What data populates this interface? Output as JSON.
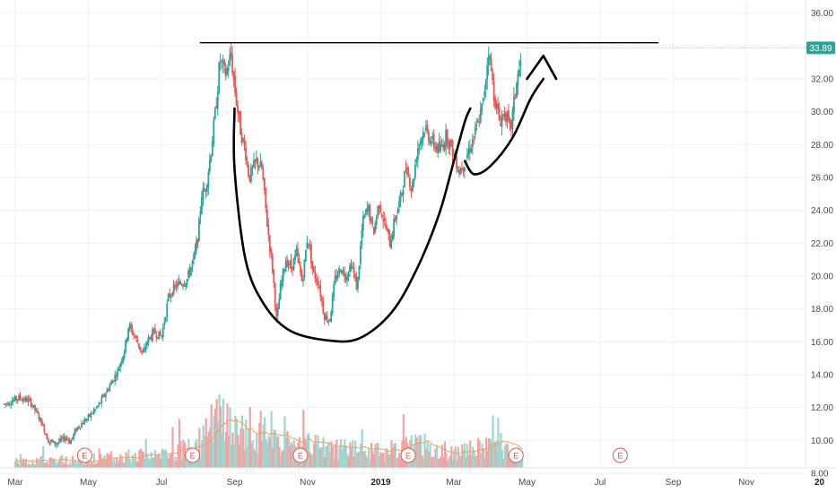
{
  "chart_data": {
    "type": "candlestick",
    "title": "",
    "y_axis": {
      "position": "right",
      "range": [
        6.8,
        36.8
      ],
      "tick_labels": [
        "36.00",
        "34.00",
        "32.00",
        "30.00",
        "28.00",
        "26.00",
        "24.00",
        "22.00",
        "20.00",
        "18.00",
        "16.00",
        "14.00",
        "12.00",
        "10.00",
        "8.00"
      ],
      "tick_values": [
        36,
        34,
        32,
        30,
        28,
        26,
        24,
        22,
        20,
        18,
        16,
        14,
        12,
        10,
        8
      ]
    },
    "x_axis": {
      "labels": [
        {
          "text": "Mar",
          "month_index": 0,
          "bold": false
        },
        {
          "text": "May",
          "month_index": 2,
          "bold": false
        },
        {
          "text": "Jul",
          "month_index": 4,
          "bold": false
        },
        {
          "text": "Sep",
          "month_index": 6,
          "bold": false
        },
        {
          "text": "Nov",
          "month_index": 8,
          "bold": false
        },
        {
          "text": "2019",
          "month_index": 10,
          "bold": true
        },
        {
          "text": "Mar",
          "month_index": 12,
          "bold": false
        },
        {
          "text": "May",
          "month_index": 14,
          "bold": false
        },
        {
          "text": "Jul",
          "month_index": 16,
          "bold": false
        },
        {
          "text": "Sep",
          "month_index": 18,
          "bold": false
        },
        {
          "text": "Nov",
          "month_index": 20,
          "bold": false
        },
        {
          "text": "20",
          "month_index": 22,
          "bold": true
        }
      ]
    },
    "price_path": [
      [
        -0.3,
        12.2
      ],
      [
        0.1,
        12.6
      ],
      [
        0.4,
        12.4
      ],
      [
        0.7,
        11.2
      ],
      [
        0.9,
        10.0
      ],
      [
        1.1,
        9.8
      ],
      [
        1.4,
        10.2
      ],
      [
        1.5,
        9.9
      ],
      [
        1.7,
        10.8
      ],
      [
        2.0,
        11.4
      ],
      [
        2.3,
        12.2
      ],
      [
        2.5,
        13.0
      ],
      [
        2.8,
        14.2
      ],
      [
        3.0,
        15.6
      ],
      [
        3.1,
        17.0
      ],
      [
        3.3,
        16.2
      ],
      [
        3.5,
        15.2
      ],
      [
        3.6,
        16.0
      ],
      [
        3.8,
        16.6
      ],
      [
        4.0,
        16.3
      ],
      [
        4.2,
        18.8
      ],
      [
        4.4,
        19.4
      ],
      [
        4.7,
        19.8
      ],
      [
        4.9,
        21.2
      ],
      [
        5.0,
        22.4
      ],
      [
        5.1,
        25.0
      ],
      [
        5.2,
        25.2
      ],
      [
        5.35,
        27.5
      ],
      [
        5.5,
        30.5
      ],
      [
        5.6,
        33.2
      ],
      [
        5.75,
        32.2
      ],
      [
        5.9,
        33.5
      ],
      [
        6.0,
        31.5
      ],
      [
        6.15,
        29.0
      ],
      [
        6.3,
        27.5
      ],
      [
        6.4,
        26.0
      ],
      [
        6.6,
        27.0
      ],
      [
        6.75,
        26.5
      ],
      [
        6.9,
        23.0
      ],
      [
        7.05,
        20.2
      ],
      [
        7.15,
        17.2
      ],
      [
        7.25,
        19.2
      ],
      [
        7.4,
        21.0
      ],
      [
        7.55,
        20.5
      ],
      [
        7.7,
        21.4
      ],
      [
        7.85,
        19.6
      ],
      [
        8.0,
        22.5
      ],
      [
        8.15,
        20.2
      ],
      [
        8.3,
        19.6
      ],
      [
        8.45,
        17.6
      ],
      [
        8.6,
        17.3
      ],
      [
        8.75,
        19.8
      ],
      [
        8.9,
        20.5
      ],
      [
        9.05,
        20.0
      ],
      [
        9.2,
        20.8
      ],
      [
        9.35,
        19.2
      ],
      [
        9.5,
        23.2
      ],
      [
        9.65,
        24.2
      ],
      [
        9.8,
        22.6
      ],
      [
        9.95,
        24.5
      ],
      [
        10.1,
        23.2
      ],
      [
        10.25,
        22.0
      ],
      [
        10.4,
        23.6
      ],
      [
        10.55,
        24.8
      ],
      [
        10.7,
        26.8
      ],
      [
        10.85,
        25.2
      ],
      [
        11.0,
        27.8
      ],
      [
        11.2,
        29.0
      ],
      [
        11.4,
        28.2
      ],
      [
        11.6,
        27.6
      ],
      [
        11.8,
        28.6
      ],
      [
        12.0,
        27.4
      ],
      [
        12.15,
        26.4
      ],
      [
        12.3,
        27.0
      ],
      [
        12.5,
        28.2
      ],
      [
        12.65,
        29.2
      ],
      [
        12.8,
        30.5
      ],
      [
        12.95,
        33.8
      ],
      [
        13.1,
        31.0
      ],
      [
        13.25,
        29.4
      ],
      [
        13.4,
        30.0
      ],
      [
        13.55,
        28.8
      ],
      [
        13.7,
        31.6
      ],
      [
        13.85,
        33.2
      ]
    ],
    "last_price": 33.89,
    "last_price_label": "33.89",
    "resistance_level": 34.2,
    "volume_path": [
      [
        0.0,
        0.06
      ],
      [
        1.0,
        0.08
      ],
      [
        2.0,
        0.07
      ],
      [
        3.0,
        0.12
      ],
      [
        4.0,
        0.11
      ],
      [
        5.0,
        0.22
      ],
      [
        5.5,
        0.45
      ],
      [
        6.0,
        0.36
      ],
      [
        7.0,
        0.24
      ],
      [
        8.0,
        0.21
      ],
      [
        9.0,
        0.18
      ],
      [
        10.0,
        0.16
      ],
      [
        11.0,
        0.22
      ],
      [
        12.0,
        0.14
      ],
      [
        13.0,
        0.2
      ],
      [
        13.9,
        0.12
      ]
    ],
    "earnings_markers": [
      {
        "label": "E",
        "month_index": 1.9
      },
      {
        "label": "E",
        "month_index": 4.85
      },
      {
        "label": "E",
        "month_index": 7.8
      },
      {
        "label": "E",
        "month_index": 10.75
      },
      {
        "label": "E",
        "month_index": 13.7
      },
      {
        "label": "E",
        "month_index": 16.55
      }
    ],
    "annotation_cup": [
      [
        6.0,
        30.2
      ],
      [
        6.0,
        26.5
      ],
      [
        6.3,
        21.0
      ],
      [
        6.8,
        18.3
      ],
      [
        7.5,
        16.7
      ],
      [
        8.5,
        16.1
      ],
      [
        9.4,
        16.2
      ],
      [
        10.3,
        17.8
      ],
      [
        11.0,
        20.5
      ],
      [
        11.6,
        23.8
      ],
      [
        12.0,
        27.0
      ],
      [
        12.3,
        29.4
      ],
      [
        12.45,
        30.2
      ]
    ],
    "annotation_handle": [
      [
        12.3,
        27.0
      ],
      [
        12.55,
        26.2
      ],
      [
        13.0,
        26.7
      ],
      [
        13.6,
        28.4
      ],
      [
        14.1,
        30.8
      ],
      [
        14.45,
        32.0
      ]
    ],
    "annotation_arrowhead": [
      [
        14.0,
        32.0
      ],
      [
        14.45,
        33.4
      ],
      [
        14.8,
        32.0
      ]
    ],
    "colors": {
      "up": "#26a69a",
      "down": "#ef5350",
      "volume_up": "#9fd6cf",
      "volume_down": "#f3a3a3",
      "volume_ma": "#f0a45d",
      "annotation": "#000000",
      "price_tag": "#26a69a",
      "grid": "#eef0f3",
      "axis_text": "#4a4a4a"
    }
  }
}
